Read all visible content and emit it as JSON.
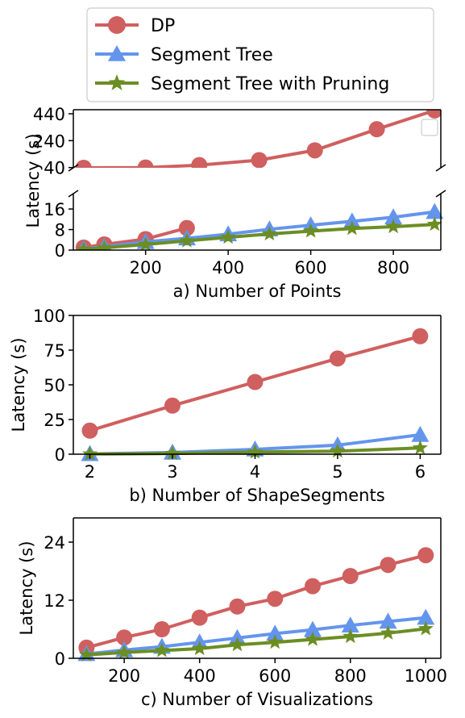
{
  "legend": {
    "items": [
      {
        "label": "DP",
        "color": "#d05f5f",
        "marker": "circle"
      },
      {
        "label": "Segment Tree",
        "color": "#6495ed",
        "marker": "triangle"
      },
      {
        "label": "Segment Tree with Pruning",
        "color": "#6b8e23",
        "marker": "star"
      }
    ]
  },
  "chart_data": [
    {
      "type": "line",
      "broken_y_axis": true,
      "xlabel": "a) Number of Points",
      "ylabel": "Latency (s)",
      "x_ticks": [
        "200",
        "400",
        "600",
        "800"
      ],
      "xlim": [
        25,
        915
      ],
      "upper_panel": {
        "ylim": [
          38,
          470
        ],
        "y_ticks": [
          "40",
          "240",
          "440"
        ]
      },
      "lower_panel": {
        "ylim": [
          0,
          22
        ],
        "y_ticks": [
          "0",
          "8",
          "16"
        ]
      },
      "series": [
        {
          "name": "DP",
          "lower": {
            "x": [
              50,
              100,
              200,
              300
            ],
            "y": [
              1.0,
              2.2,
              4.3,
              8.6
            ]
          },
          "upper": {
            "x": [
              50,
              200,
              330,
              475,
              610,
              760,
              900
            ],
            "y": [
              38,
              40,
              58,
              95,
              168,
              325,
              465
            ]
          }
        },
        {
          "name": "Segment Tree",
          "lower": {
            "x": [
              50,
              100,
              200,
              300,
              400,
              500,
              600,
              700,
              800,
              900
            ],
            "y": [
              0.5,
              1.3,
              3.2,
              4.6,
              6.2,
              8.1,
              9.7,
              11.2,
              12.8,
              14.9
            ]
          }
        },
        {
          "name": "Segment Tree with Pruning",
          "lower": {
            "x": [
              50,
              100,
              200,
              300,
              400,
              500,
              600,
              700,
              800,
              900
            ],
            "y": [
              0.3,
              0.9,
              2.2,
              3.6,
              5.0,
              6.3,
              7.4,
              8.4,
              9.1,
              10.0
            ]
          }
        }
      ]
    },
    {
      "type": "line",
      "xlabel": "b) Number of ShapeSegments",
      "ylabel": "Latency (s)",
      "x_ticks": [
        "2",
        "3",
        "4",
        "5",
        "6"
      ],
      "y_ticks": [
        "0",
        "25",
        "50",
        "75",
        "100"
      ],
      "xlim": [
        1.8,
        6.25
      ],
      "ylim": [
        0,
        100
      ],
      "series": [
        {
          "name": "DP",
          "x": [
            2,
            3,
            4,
            5,
            6
          ],
          "y": [
            17,
            35,
            52,
            69,
            85
          ]
        },
        {
          "name": "Segment Tree",
          "x": [
            2,
            3,
            4,
            5,
            6
          ],
          "y": [
            0.2,
            1.2,
            3.5,
            6.5,
            14
          ]
        },
        {
          "name": "Segment Tree with Pruning",
          "x": [
            2,
            3,
            4,
            5,
            6
          ],
          "y": [
            0.1,
            0.5,
            1.5,
            2.2,
            4.5
          ]
        }
      ]
    },
    {
      "type": "line",
      "xlabel": "c) Number of Visualizations",
      "ylabel": "Latency (s)",
      "x_ticks": [
        "200",
        "400",
        "600",
        "800",
        "1000"
      ],
      "y_ticks": [
        "0",
        "12",
        "24"
      ],
      "xlim": [
        65,
        1040
      ],
      "ylim": [
        0,
        29
      ],
      "series": [
        {
          "name": "DP",
          "x": [
            100,
            200,
            300,
            400,
            500,
            600,
            700,
            800,
            900,
            1000
          ],
          "y": [
            2.2,
            4.3,
            6.0,
            8.4,
            10.7,
            12.3,
            14.9,
            17.0,
            19.3,
            21.3
          ]
        },
        {
          "name": "Segment Tree",
          "x": [
            100,
            200,
            300,
            400,
            500,
            600,
            700,
            800,
            900,
            1000
          ],
          "y": [
            0.9,
            1.7,
            2.4,
            3.3,
            4.2,
            5.1,
            5.9,
            6.8,
            7.6,
            8.4
          ]
        },
        {
          "name": "Segment Tree with Pruning",
          "x": [
            100,
            200,
            300,
            400,
            500,
            600,
            700,
            800,
            900,
            1000
          ],
          "y": [
            0.7,
            1.2,
            1.6,
            2.0,
            2.8,
            3.3,
            3.9,
            4.5,
            5.2,
            6.1
          ]
        }
      ]
    }
  ]
}
